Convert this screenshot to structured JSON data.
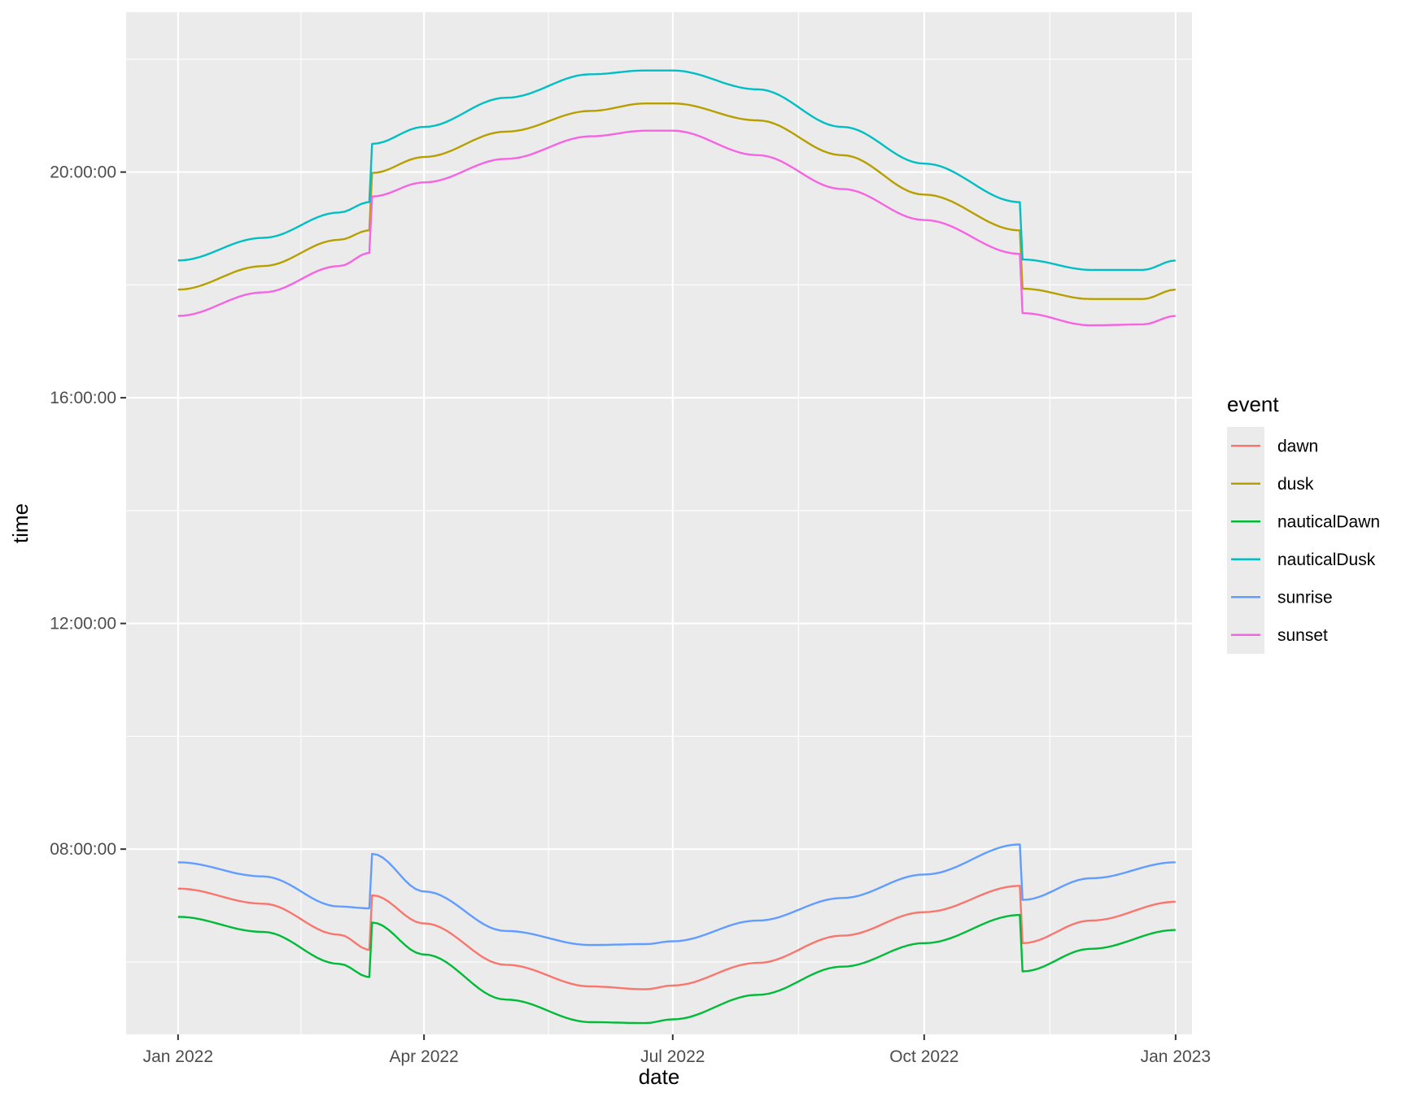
{
  "chart_data": {
    "type": "line",
    "xlabel": "date",
    "ylabel": "time",
    "x_ticks": [
      "Jan 2022",
      "Apr 2022",
      "Jul 2022",
      "Oct 2022",
      "Jan 2023"
    ],
    "x_tick_dates": [
      "2022-01-01",
      "2022-04-01",
      "2022-07-01",
      "2022-10-01",
      "2023-01-01"
    ],
    "y_ticks": [
      "08:00:00",
      "12:00:00",
      "16:00:00",
      "20:00:00"
    ],
    "xlim": [
      "2021-12-13",
      "2023-01-07"
    ],
    "ylim": [
      "04:43:00",
      "22:50:00"
    ],
    "grid": true,
    "legend": {
      "title": "event",
      "position": "right"
    },
    "dst_changes": [
      "2022-03-13",
      "2022-11-06"
    ],
    "series": [
      {
        "name": "dawn",
        "color": "#F8766D",
        "points": [
          [
            "2022-01-01",
            "07:18"
          ],
          [
            "2022-02-01",
            "07:02"
          ],
          [
            "2022-03-01",
            "06:29"
          ],
          [
            "2022-03-12",
            "06:13"
          ],
          [
            "2022-03-13",
            "07:11"
          ],
          [
            "2022-04-01",
            "06:41"
          ],
          [
            "2022-05-01",
            "05:57"
          ],
          [
            "2022-06-01",
            "05:34"
          ],
          [
            "2022-06-21",
            "05:31"
          ],
          [
            "2022-07-01",
            "05:35"
          ],
          [
            "2022-08-01",
            "05:59"
          ],
          [
            "2022-09-01",
            "06:28"
          ],
          [
            "2022-10-01",
            "06:53"
          ],
          [
            "2022-11-05",
            "07:21"
          ],
          [
            "2022-11-06",
            "06:20"
          ],
          [
            "2022-12-01",
            "06:44"
          ],
          [
            "2023-01-01",
            "07:04"
          ]
        ]
      },
      {
        "name": "dusk",
        "color": "#B79F00",
        "points": [
          [
            "2022-01-01",
            "17:55"
          ],
          [
            "2022-02-01",
            "18:20"
          ],
          [
            "2022-03-01",
            "18:48"
          ],
          [
            "2022-03-12",
            "18:58"
          ],
          [
            "2022-03-13",
            "19:59"
          ],
          [
            "2022-04-01",
            "20:16"
          ],
          [
            "2022-05-01",
            "20:43"
          ],
          [
            "2022-06-01",
            "21:05"
          ],
          [
            "2022-06-21",
            "21:13"
          ],
          [
            "2022-07-01",
            "21:13"
          ],
          [
            "2022-08-01",
            "20:55"
          ],
          [
            "2022-09-01",
            "20:18"
          ],
          [
            "2022-10-01",
            "19:36"
          ],
          [
            "2022-11-05",
            "18:58"
          ],
          [
            "2022-11-06",
            "17:56"
          ],
          [
            "2022-12-01",
            "17:45"
          ],
          [
            "2022-12-20",
            "17:45"
          ],
          [
            "2023-01-01",
            "17:55"
          ]
        ]
      },
      {
        "name": "nauticalDawn",
        "color": "#00BA38",
        "points": [
          [
            "2022-01-01",
            "06:48"
          ],
          [
            "2022-02-01",
            "06:32"
          ],
          [
            "2022-03-01",
            "05:58"
          ],
          [
            "2022-03-12",
            "05:44"
          ],
          [
            "2022-03-13",
            "06:42"
          ],
          [
            "2022-04-01",
            "06:08"
          ],
          [
            "2022-05-01",
            "05:20"
          ],
          [
            "2022-06-01",
            "04:56"
          ],
          [
            "2022-06-21",
            "04:55"
          ],
          [
            "2022-07-01",
            "04:59"
          ],
          [
            "2022-08-01",
            "05:25"
          ],
          [
            "2022-09-01",
            "05:55"
          ],
          [
            "2022-10-01",
            "06:20"
          ],
          [
            "2022-11-05",
            "06:50"
          ],
          [
            "2022-11-06",
            "05:50"
          ],
          [
            "2022-12-01",
            "06:14"
          ],
          [
            "2023-01-01",
            "06:34"
          ]
        ]
      },
      {
        "name": "nauticalDusk",
        "color": "#00BFC4",
        "points": [
          [
            "2022-01-01",
            "18:26"
          ],
          [
            "2022-02-01",
            "18:50"
          ],
          [
            "2022-03-01",
            "19:17"
          ],
          [
            "2022-03-12",
            "19:28"
          ],
          [
            "2022-03-13",
            "20:30"
          ],
          [
            "2022-04-01",
            "20:48"
          ],
          [
            "2022-05-01",
            "21:19"
          ],
          [
            "2022-06-01",
            "21:44"
          ],
          [
            "2022-06-21",
            "21:48"
          ],
          [
            "2022-07-01",
            "21:48"
          ],
          [
            "2022-08-01",
            "21:28"
          ],
          [
            "2022-09-01",
            "20:48"
          ],
          [
            "2022-10-01",
            "20:09"
          ],
          [
            "2022-11-05",
            "19:28"
          ],
          [
            "2022-11-06",
            "18:27"
          ],
          [
            "2022-12-01",
            "18:16"
          ],
          [
            "2022-12-20",
            "18:16"
          ],
          [
            "2023-01-01",
            "18:26"
          ]
        ]
      },
      {
        "name": "sunrise",
        "color": "#619CFF",
        "points": [
          [
            "2022-01-01",
            "07:46"
          ],
          [
            "2022-02-01",
            "07:31"
          ],
          [
            "2022-03-01",
            "06:59"
          ],
          [
            "2022-03-12",
            "06:57"
          ],
          [
            "2022-03-13",
            "07:55"
          ],
          [
            "2022-04-01",
            "07:15"
          ],
          [
            "2022-05-01",
            "06:33"
          ],
          [
            "2022-06-01",
            "06:18"
          ],
          [
            "2022-06-21",
            "06:19"
          ],
          [
            "2022-07-01",
            "06:22"
          ],
          [
            "2022-08-01",
            "06:44"
          ],
          [
            "2022-09-01",
            "07:08"
          ],
          [
            "2022-10-01",
            "07:33"
          ],
          [
            "2022-11-05",
            "08:05"
          ],
          [
            "2022-11-06",
            "07:06"
          ],
          [
            "2022-12-01",
            "07:29"
          ],
          [
            "2023-01-01",
            "07:46"
          ]
        ]
      },
      {
        "name": "sunset",
        "color": "#F564E3",
        "points": [
          [
            "2022-01-01",
            "17:27"
          ],
          [
            "2022-02-01",
            "17:52"
          ],
          [
            "2022-03-01",
            "18:20"
          ],
          [
            "2022-03-12",
            "18:34"
          ],
          [
            "2022-03-13",
            "19:34"
          ],
          [
            "2022-04-01",
            "19:49"
          ],
          [
            "2022-05-01",
            "20:14"
          ],
          [
            "2022-06-01",
            "20:38"
          ],
          [
            "2022-06-21",
            "20:44"
          ],
          [
            "2022-07-01",
            "20:44"
          ],
          [
            "2022-08-01",
            "20:18"
          ],
          [
            "2022-09-01",
            "19:42"
          ],
          [
            "2022-10-01",
            "19:09"
          ],
          [
            "2022-11-05",
            "18:33"
          ],
          [
            "2022-11-06",
            "17:30"
          ],
          [
            "2022-12-01",
            "17:17"
          ],
          [
            "2022-12-20",
            "17:18"
          ],
          [
            "2023-01-01",
            "17:27"
          ]
        ]
      }
    ]
  }
}
